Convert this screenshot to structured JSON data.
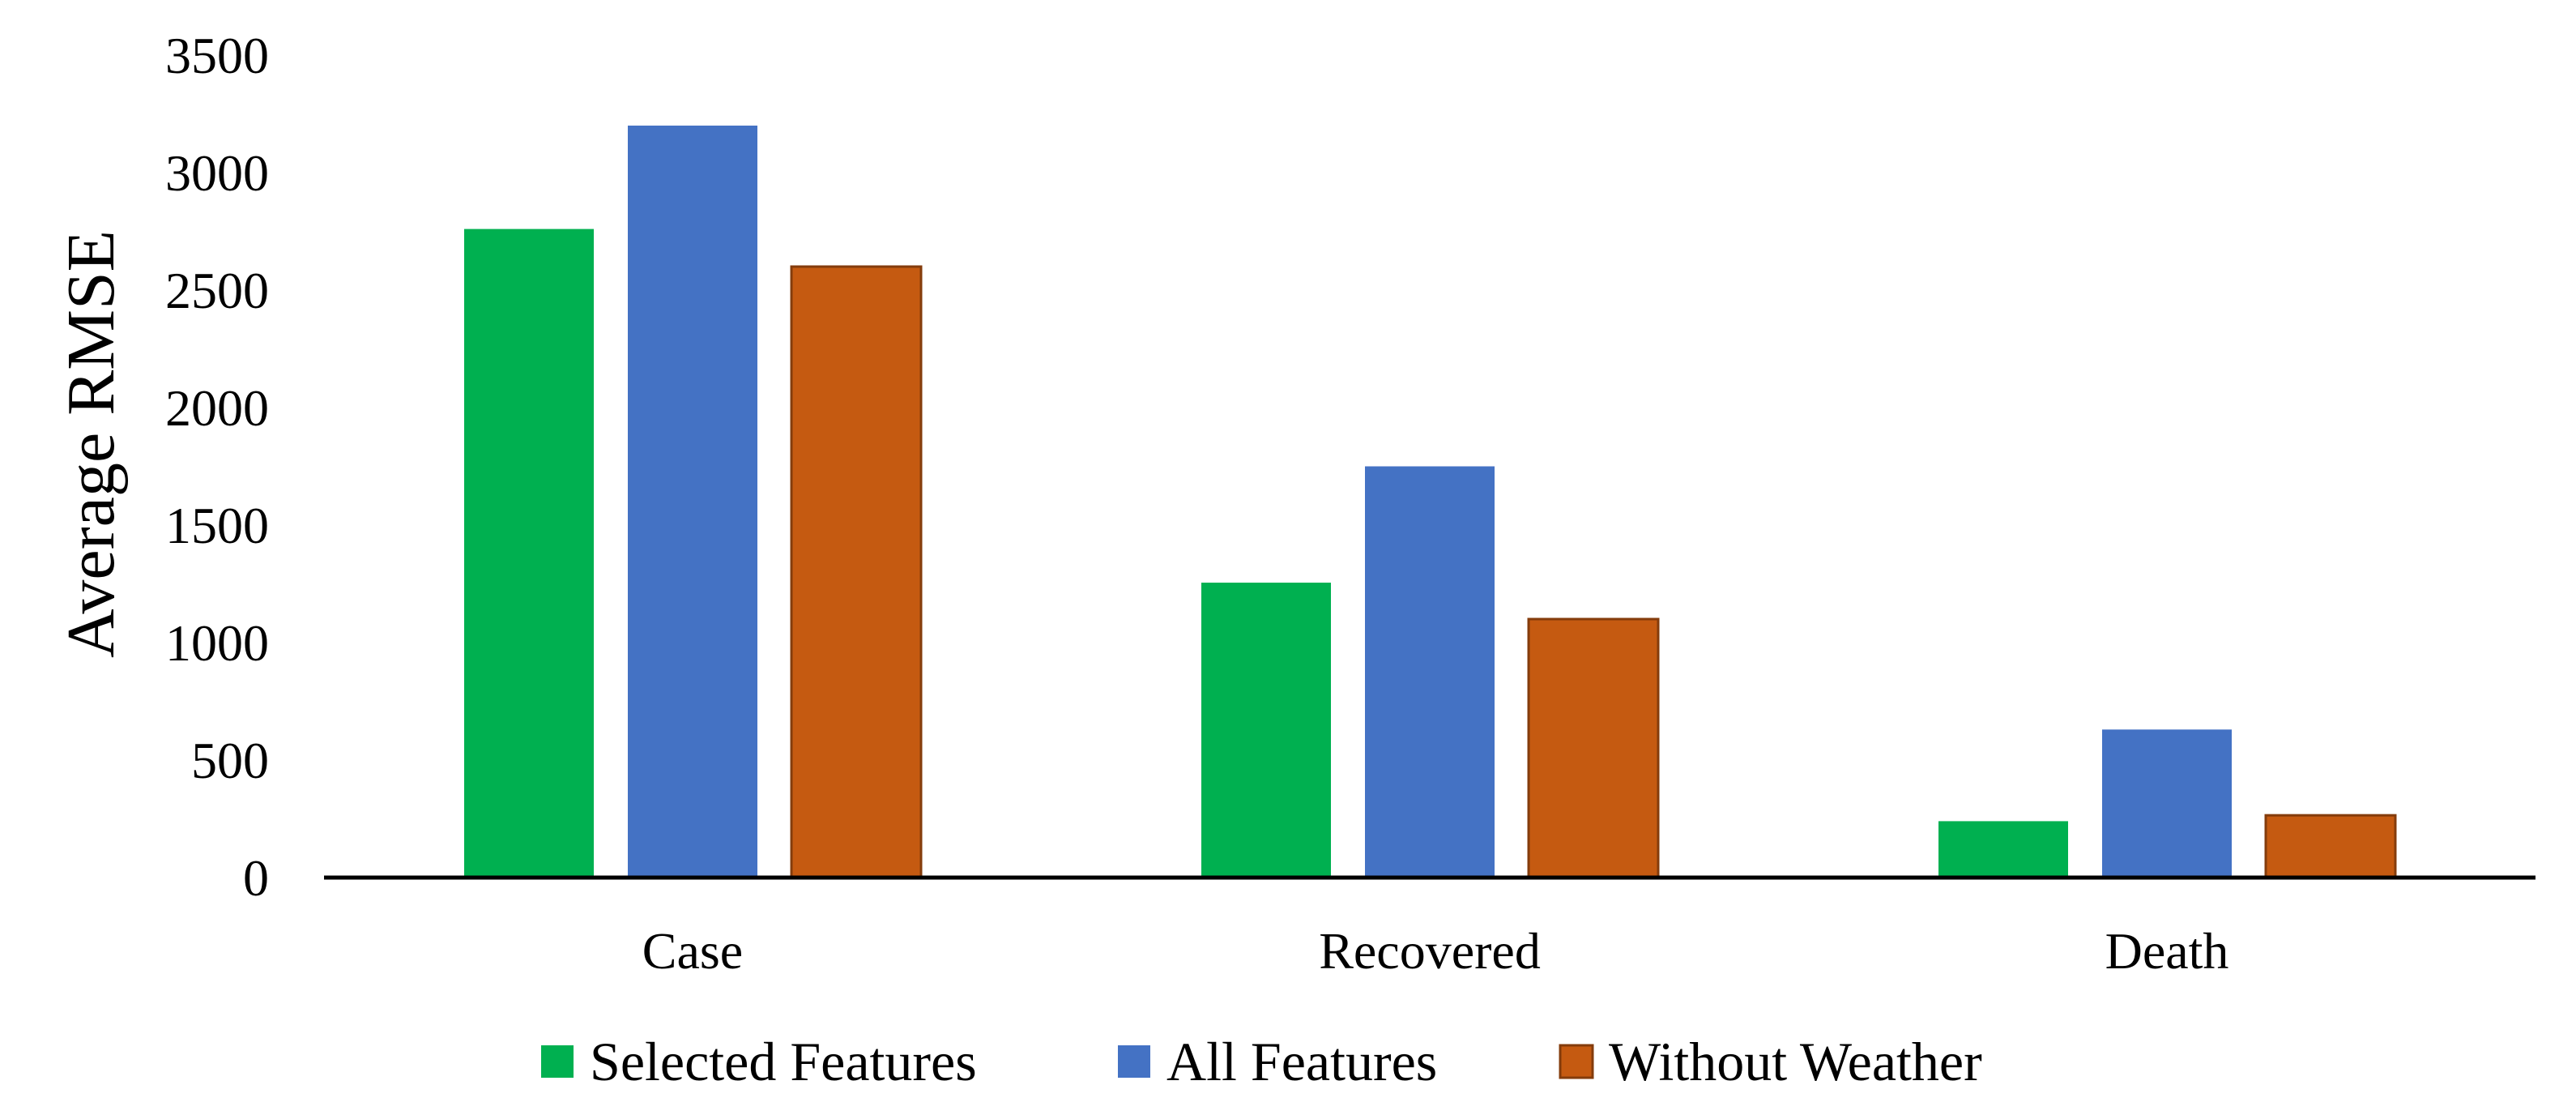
{
  "chart_data": {
    "type": "bar",
    "title": "",
    "xlabel": "",
    "ylabel": "Average RMSE",
    "ylim": [
      0,
      3500
    ],
    "yticks": [
      0,
      500,
      1000,
      1500,
      2000,
      2500,
      3000,
      3500
    ],
    "categories": [
      "Case",
      "Recovered",
      "Death"
    ],
    "series": [
      {
        "name": "Selected Features",
        "color": "#00B050",
        "values": [
          2760,
          1255,
          240
        ]
      },
      {
        "name": "All Features",
        "color": "#4472C4",
        "values": [
          3200,
          1750,
          630
        ]
      },
      {
        "name": "Without Weather",
        "color": "#C55A11",
        "values": [
          2600,
          1100,
          265
        ]
      }
    ],
    "grid": false,
    "legend_position": "bottom"
  }
}
